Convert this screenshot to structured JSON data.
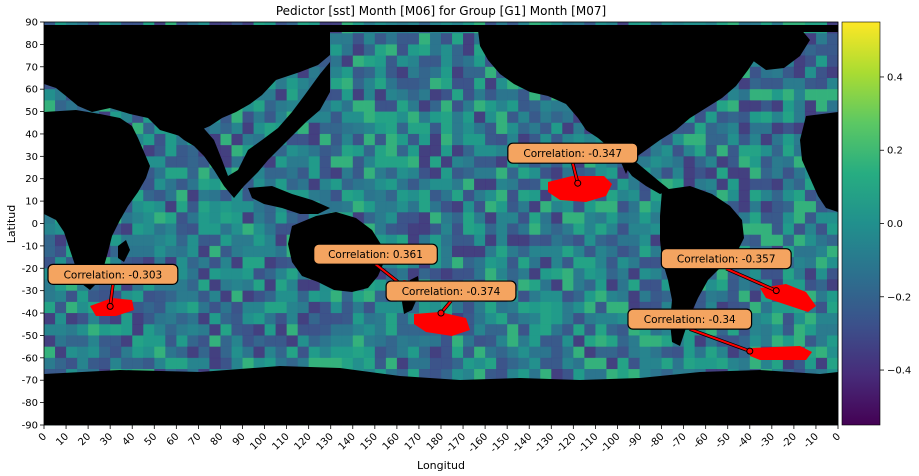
{
  "chart_data": {
    "type": "heatmap",
    "title": "Pedictor [sst] Month [M06] for Group [G1] Month [M07]",
    "xlabel": "Longitud",
    "ylabel": "Latitud",
    "x_ticks": [
      "0",
      "10",
      "20",
      "30",
      "40",
      "50",
      "60",
      "70",
      "80",
      "90",
      "100",
      "110",
      "120",
      "130",
      "140",
      "150",
      "160",
      "170",
      "180",
      "-170",
      "-160",
      "-150",
      "-140",
      "-130",
      "-120",
      "-110",
      "-100",
      "-90",
      "-80",
      "-70",
      "-60",
      "-50",
      "-40",
      "-30",
      "-20",
      "-10",
      "0"
    ],
    "y_ticks": [
      "90",
      "80",
      "70",
      "60",
      "50",
      "40",
      "30",
      "20",
      "10",
      "0",
      "-10",
      "-20",
      "-30",
      "-40",
      "-50",
      "-60",
      "-70",
      "-80",
      "-90"
    ],
    "xlim": [
      0,
      360
    ],
    "ylim": [
      -90,
      90
    ],
    "colorbar": {
      "ticks": [
        "0.4",
        "0.2",
        "0.0",
        "−0.2",
        "−0.4"
      ],
      "tick_values": [
        0.4,
        0.2,
        0.0,
        -0.2,
        -0.4
      ],
      "range": [
        -0.55,
        0.55
      ],
      "colormap": "viridis"
    },
    "land_color": "#000000",
    "highlight_color": "#ff0000",
    "annotation_box_color": "#f4a460",
    "annotations": [
      {
        "label": "Correlation: -0.347",
        "lon": 242,
        "lat": 18
      },
      {
        "label": "Correlation: 0.361",
        "lon": 163,
        "lat": -28
      },
      {
        "label": "Correlation: -0.374",
        "lon": 180,
        "lat": -40
      },
      {
        "label": "Correlation: -0.303",
        "lon": 30,
        "lat": -37
      },
      {
        "label": "Correlation: -0.357",
        "lon": 332,
        "lat": -30
      },
      {
        "label": "Correlation: -0.34",
        "lon": 320,
        "lat": -57
      }
    ]
  }
}
